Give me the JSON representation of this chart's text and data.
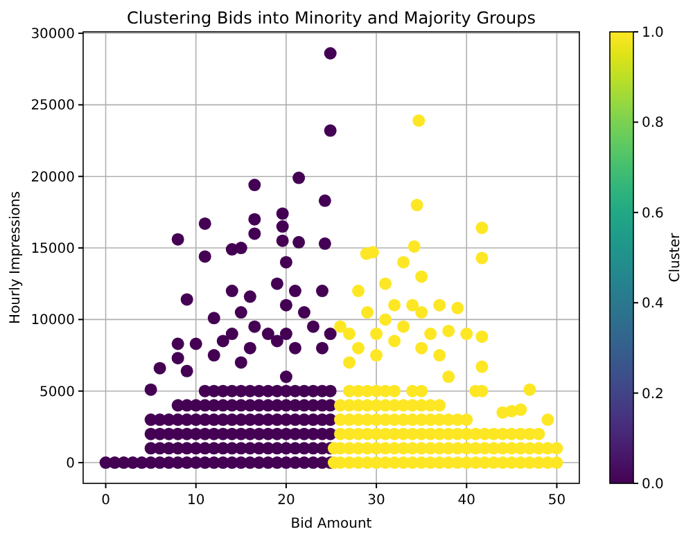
{
  "chart_data": {
    "type": "scatter",
    "title": "Clustering Bids into Minority and Majority Groups",
    "xlabel": "Bid Amount",
    "ylabel": "Hourly Impressions",
    "clabel": "Cluster",
    "xlim": [
      -2.5,
      52.5
    ],
    "ylim": [
      -1450,
      30100
    ],
    "xticks": [
      0,
      10,
      20,
      30,
      40,
      50
    ],
    "yticks": [
      0,
      5000,
      10000,
      15000,
      20000,
      25000,
      30000
    ],
    "clim": [
      0,
      1
    ],
    "cticks": [
      {
        "value": 0,
        "label": "0.0"
      },
      {
        "value": 0.2,
        "label": "0.2"
      },
      {
        "value": 0.4,
        "label": "0.4"
      },
      {
        "value": 0.6,
        "label": "0.6"
      },
      {
        "value": 0.8,
        "label": "0.8"
      },
      {
        "value": 1,
        "label": "1.0"
      }
    ],
    "grid": true,
    "marker": "circle",
    "series": [
      {
        "x": [
          0,
          1,
          2,
          3,
          4,
          5,
          5,
          5,
          5,
          5,
          6,
          6,
          6,
          6,
          6,
          7,
          7,
          7,
          7,
          8,
          8,
          8,
          8,
          8,
          8,
          8,
          8,
          9,
          9,
          9,
          9,
          9,
          9,
          9,
          10,
          10,
          10,
          10,
          10,
          10,
          11,
          11,
          11,
          11,
          11,
          11,
          11,
          11,
          12,
          12,
          12,
          12,
          12,
          12,
          12,
          12,
          13,
          13,
          13,
          13,
          13,
          13,
          13,
          14,
          14,
          14,
          14,
          14,
          14,
          14,
          14,
          14,
          15,
          15,
          15,
          15,
          15,
          15,
          15,
          15,
          15,
          16,
          16,
          16,
          16,
          16,
          16,
          16,
          16,
          16.5,
          16.5,
          16.5,
          16.5,
          17,
          17,
          17,
          17,
          17,
          17,
          18,
          18,
          18,
          18,
          18,
          18,
          18,
          19,
          19,
          19,
          19,
          19,
          19,
          19,
          19,
          19.6,
          19.6,
          19.6,
          20,
          20,
          20,
          20,
          20,
          20,
          20,
          20,
          20,
          20,
          21,
          21,
          21,
          21,
          21,
          21,
          21,
          21,
          21.4,
          21.4,
          22,
          22,
          22,
          22,
          22,
          22,
          22,
          23,
          23,
          23,
          23,
          23,
          23,
          23,
          24,
          24,
          24,
          24,
          24,
          24,
          24,
          24,
          24.3,
          24.3,
          24.9,
          24.9,
          24.9,
          24.9,
          24.9,
          24.9,
          24.9,
          24.9,
          24.9
        ],
        "values": [
          0,
          0,
          0,
          0,
          0,
          0,
          1000,
          2000,
          3000,
          5100,
          0,
          1000,
          2000,
          3000,
          6600,
          0,
          1000,
          2000,
          3000,
          0,
          1000,
          2000,
          3000,
          4000,
          7300,
          8300,
          15600,
          0,
          1000,
          2000,
          3000,
          4000,
          6400,
          11400,
          0,
          1000,
          2000,
          3000,
          4000,
          8300,
          0,
          1000,
          2000,
          3000,
          4000,
          5000,
          16700,
          14400,
          0,
          1000,
          2000,
          3000,
          4000,
          5000,
          10100,
          7500,
          0,
          1000,
          2000,
          3000,
          4000,
          5000,
          8500,
          0,
          1000,
          2000,
          3000,
          4000,
          5000,
          12000,
          14900,
          9000,
          0,
          1000,
          2000,
          3000,
          4000,
          5000,
          15000,
          10500,
          7000,
          0,
          1000,
          2000,
          3000,
          4000,
          5000,
          11600,
          8000,
          19400,
          17000,
          16000,
          9500,
          0,
          1000,
          2000,
          3000,
          4000,
          5000,
          0,
          1000,
          2000,
          3000,
          4000,
          5000,
          9000,
          0,
          1000,
          2000,
          3000,
          4000,
          5000,
          12500,
          8500,
          17400,
          16500,
          15500,
          0,
          1000,
          2000,
          3000,
          4000,
          5000,
          6000,
          14000,
          11000,
          9000,
          0,
          1000,
          2000,
          3000,
          4000,
          5000,
          12000,
          8000,
          19900,
          15400,
          0,
          1000,
          2000,
          3000,
          4000,
          5000,
          10500,
          0,
          1000,
          2000,
          3000,
          4000,
          5000,
          9500,
          0,
          1000,
          2000,
          3000,
          4000,
          5000,
          12000,
          8000,
          18300,
          15300,
          0,
          1000,
          2000,
          3000,
          4000,
          5000,
          9000,
          23200,
          28600
        ],
        "cvalues": [
          0,
          0,
          0,
          0,
          0,
          0,
          0,
          0,
          0,
          0,
          0,
          0,
          0,
          0,
          0,
          0,
          0,
          0,
          0,
          0,
          0,
          0,
          0,
          0,
          0,
          0,
          0,
          0,
          0,
          0,
          0,
          0,
          0,
          0,
          0,
          0,
          0,
          0,
          0,
          0,
          0,
          0,
          0,
          0,
          0,
          0,
          0,
          0,
          0,
          0,
          0,
          0,
          0,
          0,
          0,
          0,
          0,
          0,
          0,
          0,
          0,
          0,
          0,
          0,
          0,
          0,
          0,
          0,
          0,
          0,
          0,
          0,
          0,
          0,
          0,
          0,
          0,
          0,
          0,
          0,
          0,
          0,
          0,
          0,
          0,
          0,
          0,
          0,
          0,
          0,
          0,
          0,
          0,
          0,
          0,
          0,
          0,
          0,
          0,
          0,
          0,
          0,
          0,
          0,
          0,
          0,
          0,
          0,
          0,
          0,
          0,
          0,
          0,
          0,
          0,
          0,
          0,
          0,
          0,
          0,
          0,
          0,
          0,
          0,
          0,
          0,
          0,
          0,
          0,
          0,
          0,
          0,
          0,
          0,
          0,
          0,
          0,
          0,
          0,
          0,
          0,
          0,
          0,
          0,
          0,
          0,
          0,
          0,
          0,
          0,
          0,
          0,
          0,
          0,
          0,
          0,
          0,
          0,
          0,
          0,
          0,
          0,
          0,
          0,
          0,
          0,
          0,
          0,
          0,
          0
        ]
      },
      {
        "x": [
          25.3,
          25.3,
          26,
          26,
          26,
          26,
          26,
          26,
          27,
          27,
          27,
          27,
          27,
          27,
          27,
          27,
          28,
          28,
          28,
          28,
          28,
          28,
          28,
          28,
          28.9,
          29,
          29,
          29,
          29,
          29,
          29,
          29,
          29.6,
          30,
          30,
          30,
          30,
          30,
          30,
          30,
          30,
          31,
          31,
          31,
          31,
          31,
          31,
          31,
          31,
          32,
          32,
          32,
          32,
          32,
          32,
          32,
          32,
          33,
          33,
          33,
          33,
          33,
          33,
          33,
          34,
          34,
          34,
          34,
          34,
          34,
          34,
          34.2,
          34.5,
          34.7,
          35,
          35,
          35,
          35,
          35,
          35,
          35,
          35,
          35,
          36,
          36,
          36,
          36,
          36,
          36,
          37,
          37,
          37,
          37,
          37,
          37,
          37,
          38,
          38,
          38,
          38,
          38,
          38,
          39,
          39,
          39,
          39,
          39,
          40,
          40,
          40,
          40,
          40,
          41,
          41,
          41,
          41,
          41.7,
          41.7,
          41.7,
          41.7,
          41.7,
          42,
          42,
          42,
          43,
          43,
          43,
          44,
          44,
          44,
          44,
          45,
          45,
          45,
          45,
          46,
          46,
          46,
          46,
          47,
          47,
          47,
          47,
          48,
          48,
          48,
          49,
          49,
          49,
          50,
          50
        ],
        "values": [
          0,
          1000,
          0,
          1000,
          2000,
          3000,
          4000,
          9500,
          0,
          1000,
          2000,
          3000,
          4000,
          5000,
          9000,
          7000,
          0,
          1000,
          2000,
          3000,
          4000,
          5000,
          12000,
          8000,
          14600,
          0,
          1000,
          2000,
          3000,
          4000,
          5000,
          10500,
          14700,
          0,
          1000,
          2000,
          3000,
          4000,
          5000,
          9000,
          7500,
          0,
          1000,
          2000,
          3000,
          4000,
          5000,
          12500,
          10000,
          0,
          1000,
          2000,
          3000,
          4000,
          5000,
          11000,
          8500,
          0,
          1000,
          2000,
          3000,
          4000,
          14000,
          9500,
          0,
          1000,
          2000,
          3000,
          4000,
          5000,
          11000,
          15100,
          18000,
          23900,
          0,
          1000,
          2000,
          3000,
          4000,
          5000,
          13000,
          10500,
          8000,
          0,
          1000,
          2000,
          3000,
          4000,
          9000,
          0,
          1000,
          2000,
          3000,
          4000,
          11000,
          7500,
          0,
          1000,
          2000,
          3000,
          9200,
          6000,
          0,
          1000,
          2000,
          3000,
          10800,
          0,
          1000,
          2000,
          3000,
          9000,
          0,
          1000,
          2000,
          5000,
          16400,
          14300,
          8800,
          6700,
          5000,
          0,
          1000,
          2000,
          0,
          1000,
          2000,
          0,
          1000,
          2000,
          3500,
          0,
          1000,
          2000,
          3600,
          0,
          1000,
          2000,
          3700,
          0,
          1000,
          2000,
          5100,
          0,
          1000,
          2000,
          0,
          1000,
          3000,
          0,
          1000
        ],
        "cvalues": [
          1,
          1,
          1,
          1,
          1,
          1,
          1,
          1,
          1,
          1,
          1,
          1,
          1,
          1,
          1,
          1,
          1,
          1,
          1,
          1,
          1,
          1,
          1,
          1,
          1,
          1,
          1,
          1,
          1,
          1,
          1,
          1,
          1,
          1,
          1,
          1,
          1,
          1,
          1,
          1,
          1,
          1,
          1,
          1,
          1,
          1,
          1,
          1,
          1,
          1,
          1,
          1,
          1,
          1,
          1,
          1,
          1,
          1,
          1,
          1,
          1,
          1,
          1,
          1,
          1,
          1,
          1,
          1,
          1,
          1,
          1,
          1,
          1,
          1,
          1,
          1,
          1,
          1,
          1,
          1,
          1,
          1,
          1,
          1,
          1,
          1,
          1,
          1,
          1,
          1,
          1,
          1,
          1,
          1,
          1,
          1,
          1,
          1,
          1,
          1,
          1,
          1,
          1,
          1,
          1,
          1,
          1,
          1,
          1,
          1,
          1,
          1,
          1,
          1,
          1,
          1,
          1,
          1,
          1,
          1,
          1,
          1,
          1,
          1,
          1,
          1,
          1,
          1,
          1,
          1,
          1,
          1,
          1,
          1,
          1,
          1,
          1,
          1,
          1,
          1,
          1,
          1,
          1,
          1,
          1,
          1,
          1,
          1,
          1,
          1,
          1
        ]
      }
    ]
  }
}
